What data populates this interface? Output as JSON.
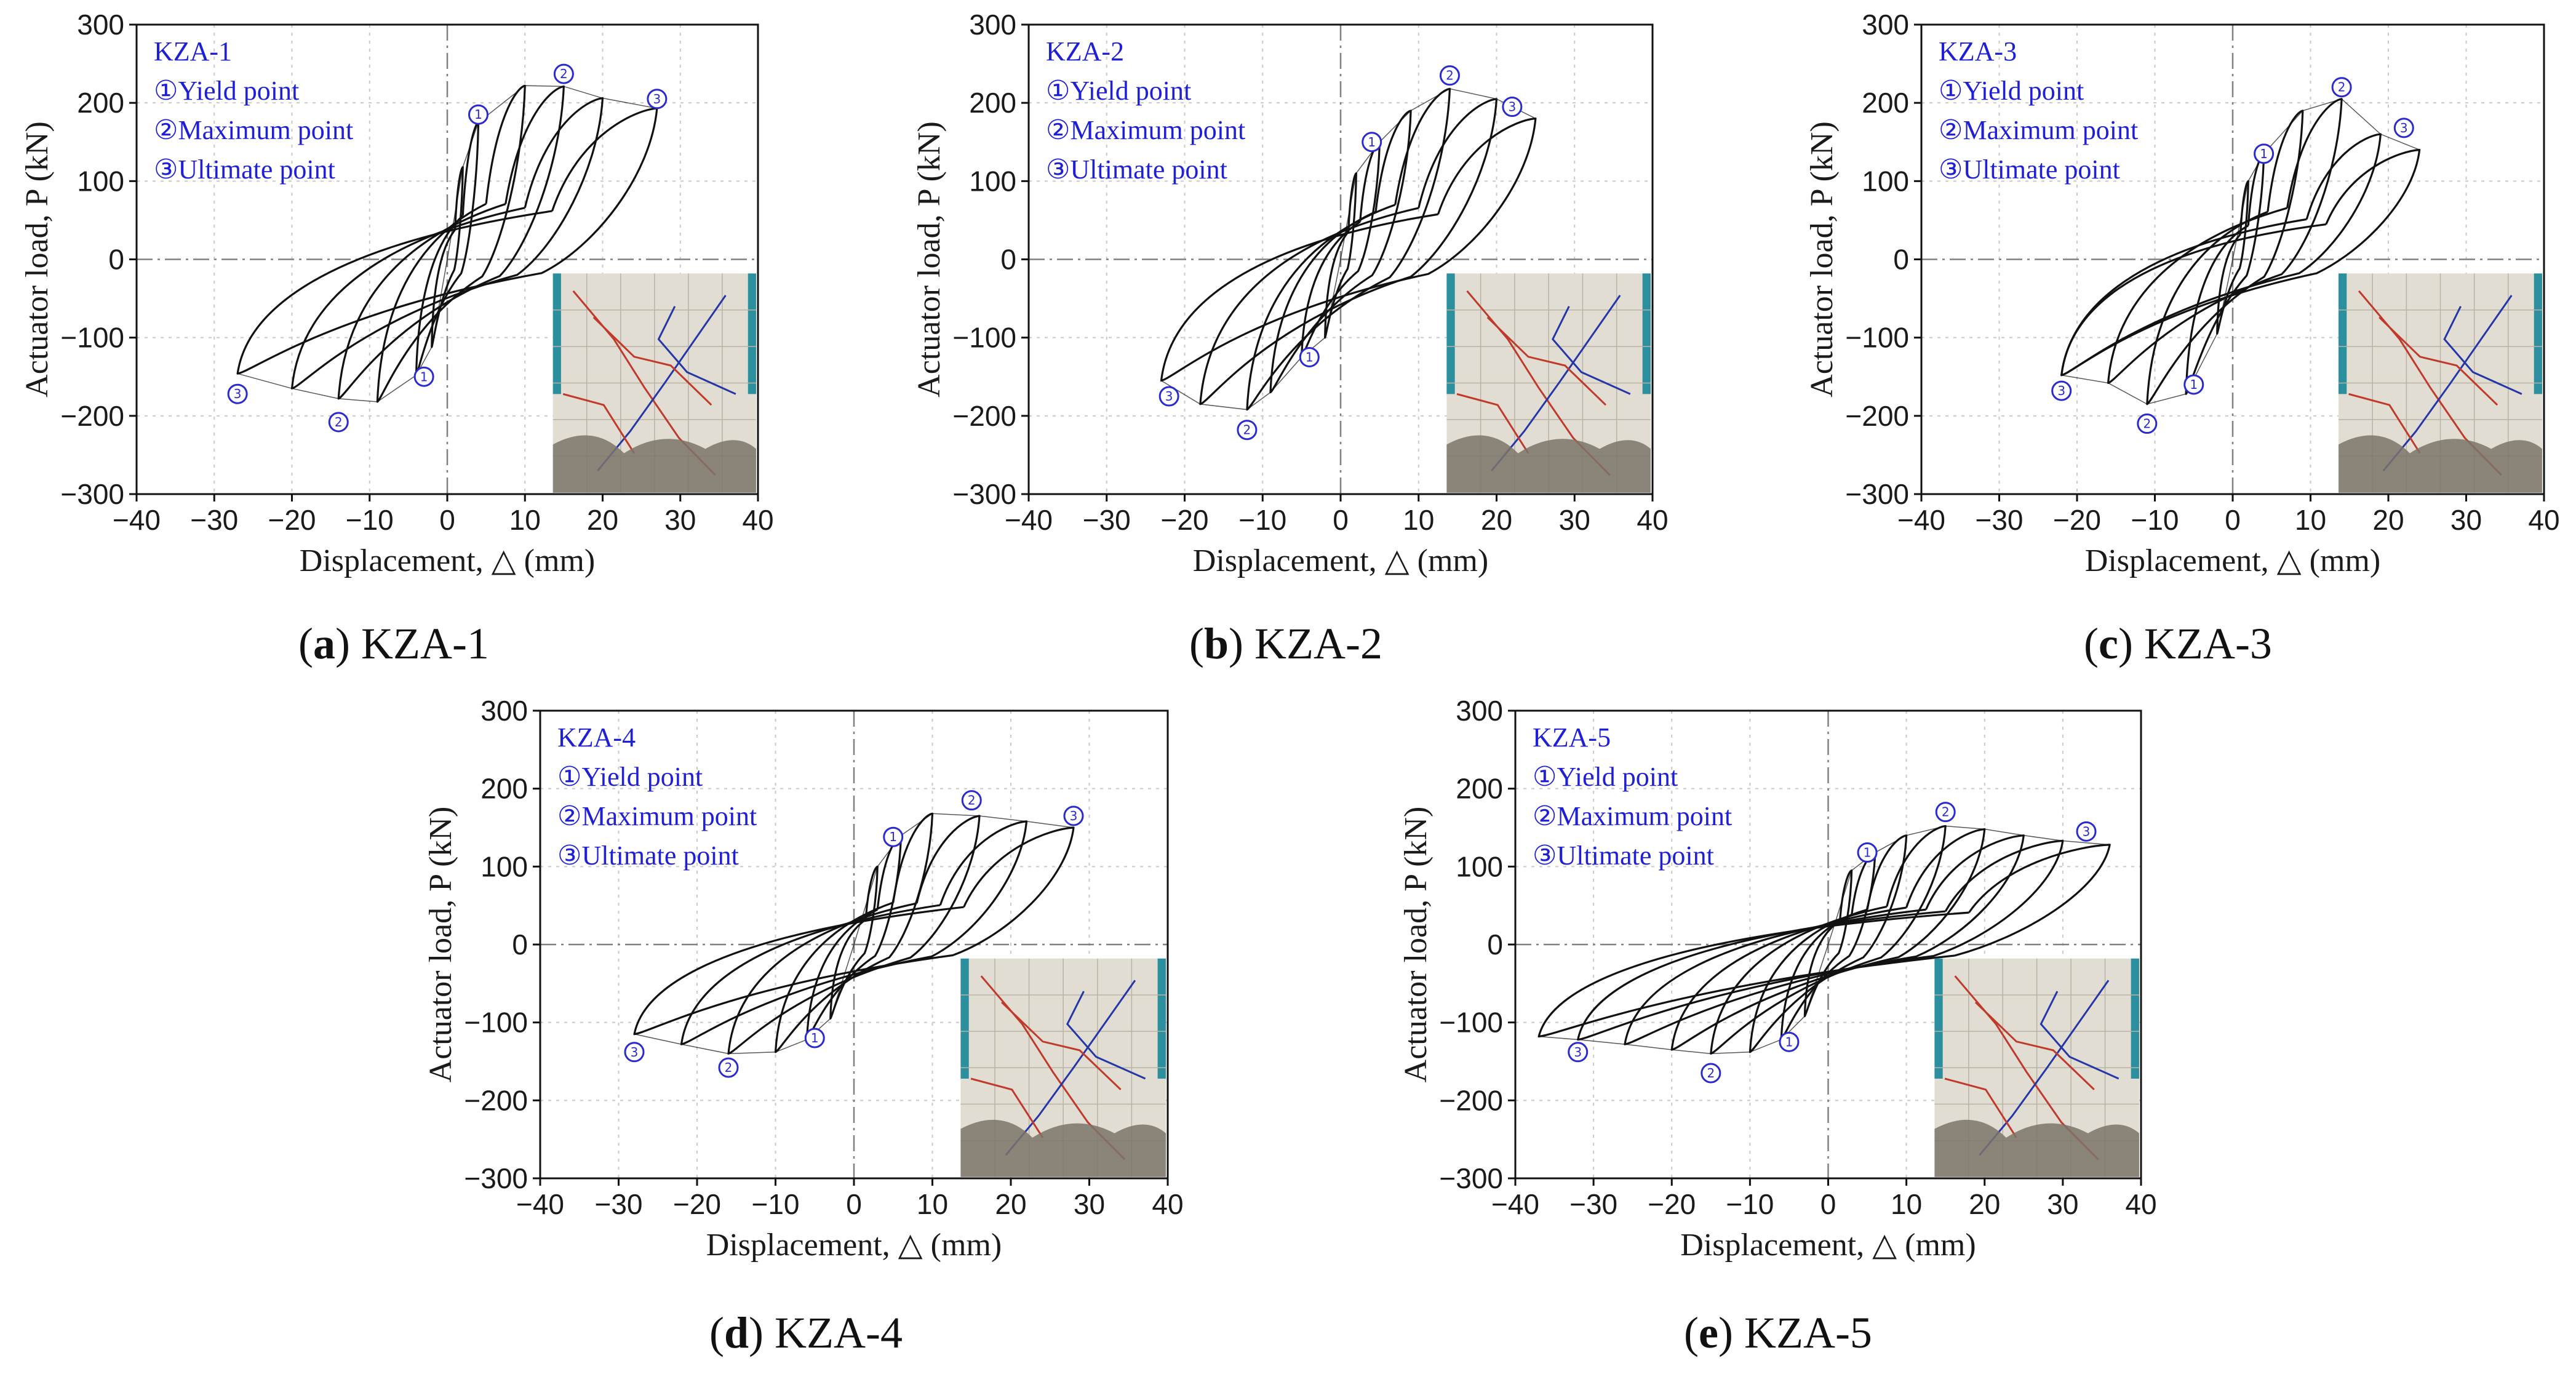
{
  "colors": {
    "legend": "#1f1fd6",
    "marker": "#2a2ad0",
    "curve": "#111111"
  },
  "chart_data": [
    {
      "type": "line",
      "id": "a",
      "caption_label": "(a)",
      "caption_text": "KZA-1",
      "title": "KZA-1",
      "legend": [
        "①Yield point",
        "②Maximum point",
        "③Ultimate point"
      ],
      "xlabel": "Displacement, △ (mm)",
      "ylabel": "Actuator load, P (kN)",
      "xlim": [
        -40,
        40
      ],
      "ylim": [
        -300,
        300
      ],
      "xticks": [
        -40,
        -30,
        -20,
        -10,
        0,
        10,
        20,
        30,
        40
      ],
      "yticks": [
        -300,
        -200,
        -100,
        0,
        100,
        200,
        300
      ],
      "xtick_labels": [
        "−40",
        "−30",
        "−20",
        "−10",
        "0",
        "10",
        "20",
        "30",
        "40"
      ],
      "ytick_labels": [
        "−300",
        "−200",
        "−100",
        "0",
        "100",
        "200",
        "300"
      ],
      "pos_peaks": [
        [
          2,
          118
        ],
        [
          4,
          175
        ],
        [
          10,
          222
        ],
        [
          15,
          221
        ],
        [
          20,
          206
        ],
        [
          27,
          193
        ]
      ],
      "neg_peaks": [
        [
          -2,
          -112
        ],
        [
          -4,
          -148
        ],
        [
          -9,
          -182
        ],
        [
          -14,
          -178
        ],
        [
          -20,
          -165
        ],
        [
          -27,
          -146
        ]
      ],
      "points": [
        {
          "label": "①",
          "x": 4,
          "y": 185
        },
        {
          "label": "②",
          "x": 15,
          "y": 237
        },
        {
          "label": "③",
          "x": 27,
          "y": 205
        },
        {
          "label": "①",
          "x": -3,
          "y": -150
        },
        {
          "label": "②",
          "x": -14,
          "y": -208
        },
        {
          "label": "③",
          "x": -27,
          "y": -172
        }
      ],
      "photo": "Failure mode photograph of specimen KZA-1 (crack pattern)"
    },
    {
      "type": "line",
      "id": "b",
      "caption_label": "(b)",
      "caption_text": "KZA-2",
      "title": "KZA-2",
      "legend": [
        "①Yield point",
        "②Maximum point",
        "③Ultimate point"
      ],
      "xlabel": "Displacement, △ (mm)",
      "ylabel": "Actuator load, P (kN)",
      "xlim": [
        -40,
        40
      ],
      "ylim": [
        -300,
        300
      ],
      "xticks": [
        -40,
        -30,
        -20,
        -10,
        0,
        10,
        20,
        30,
        40
      ],
      "yticks": [
        -300,
        -200,
        -100,
        0,
        100,
        200,
        300
      ],
      "xtick_labels": [
        "−40",
        "−30",
        "−20",
        "−10",
        "0",
        "10",
        "20",
        "30",
        "40"
      ],
      "ytick_labels": [
        "−300",
        "−200",
        "−100",
        "0",
        "100",
        "200",
        "300"
      ],
      "pos_peaks": [
        [
          2,
          110
        ],
        [
          5,
          150
        ],
        [
          9,
          190
        ],
        [
          14,
          218
        ],
        [
          20,
          205
        ],
        [
          25,
          180
        ]
      ],
      "neg_peaks": [
        [
          -2,
          -100
        ],
        [
          -5,
          -125
        ],
        [
          -9,
          -170
        ],
        [
          -12,
          -192
        ],
        [
          -18,
          -185
        ],
        [
          -23,
          -155
        ]
      ],
      "points": [
        {
          "label": "①",
          "x": 4,
          "y": 150
        },
        {
          "label": "②",
          "x": 14,
          "y": 235
        },
        {
          "label": "③",
          "x": 22,
          "y": 195
        },
        {
          "label": "①",
          "x": -4,
          "y": -125
        },
        {
          "label": "②",
          "x": -12,
          "y": -218
        },
        {
          "label": "③",
          "x": -22,
          "y": -175
        }
      ],
      "photo": "Failure mode photograph of specimen KZA-2 (crack pattern)"
    },
    {
      "type": "line",
      "id": "c",
      "caption_label": "(c)",
      "caption_text": "KZA-3",
      "title": "KZA-3",
      "legend": [
        "①Yield point",
        "②Maximum point",
        "③Ultimate point"
      ],
      "xlabel": "Displacement, △ (mm)",
      "ylabel": "Actuator load, P (kN)",
      "xlim": [
        -40,
        40
      ],
      "ylim": [
        -300,
        300
      ],
      "xticks": [
        -40,
        -30,
        -20,
        -10,
        0,
        10,
        20,
        30,
        40
      ],
      "yticks": [
        -300,
        -200,
        -100,
        0,
        100,
        200,
        300
      ],
      "xtick_labels": [
        "−40",
        "−30",
        "−20",
        "−10",
        "0",
        "10",
        "20",
        "30",
        "40"
      ],
      "ytick_labels": [
        "−300",
        "−200",
        "−100",
        "0",
        "100",
        "200",
        "300"
      ],
      "pos_peaks": [
        [
          2,
          100
        ],
        [
          4,
          135
        ],
        [
          9,
          190
        ],
        [
          14,
          205
        ],
        [
          19,
          160
        ],
        [
          24,
          140
        ]
      ],
      "neg_peaks": [
        [
          -2,
          -95
        ],
        [
          -6,
          -172
        ],
        [
          -11,
          -185
        ],
        [
          -16,
          -158
        ],
        [
          -22,
          -148
        ]
      ],
      "points": [
        {
          "label": "①",
          "x": 4,
          "y": 135
        },
        {
          "label": "②",
          "x": 14,
          "y": 220
        },
        {
          "label": "③",
          "x": 22,
          "y": 168
        },
        {
          "label": "①",
          "x": -5,
          "y": -160
        },
        {
          "label": "②",
          "x": -11,
          "y": -210
        },
        {
          "label": "③",
          "x": -22,
          "y": -168
        }
      ],
      "photo": "Failure mode photograph of specimen KZA-3 (crack pattern)"
    },
    {
      "type": "line",
      "id": "d",
      "caption_label": "(d)",
      "caption_text": "KZA-4",
      "title": "KZA-4",
      "legend": [
        "①Yield point",
        "②Maximum point",
        "③Ultimate point"
      ],
      "xlabel": "Displacement, △ (mm)",
      "ylabel": "Actuator load, P (kN)",
      "xlim": [
        -40,
        40
      ],
      "ylim": [
        -300,
        300
      ],
      "xticks": [
        -40,
        -30,
        -20,
        -10,
        0,
        10,
        20,
        30,
        40
      ],
      "yticks": [
        -300,
        -200,
        -100,
        0,
        100,
        200,
        300
      ],
      "xtick_labels": [
        "−40",
        "−30",
        "−20",
        "−10",
        "0",
        "10",
        "20",
        "30",
        "40"
      ],
      "ytick_labels": [
        "−300",
        "−200",
        "−100",
        "0",
        "100",
        "200",
        "300"
      ],
      "pos_peaks": [
        [
          3,
          100
        ],
        [
          6,
          140
        ],
        [
          10,
          168
        ],
        [
          16,
          165
        ],
        [
          22,
          158
        ],
        [
          28,
          150
        ]
      ],
      "neg_peaks": [
        [
          -3,
          -95
        ],
        [
          -6,
          -122
        ],
        [
          -10,
          -138
        ],
        [
          -16,
          -140
        ],
        [
          -22,
          -128
        ],
        [
          -28,
          -115
        ]
      ],
      "points": [
        {
          "label": "①",
          "x": 5,
          "y": 138
        },
        {
          "label": "②",
          "x": 15,
          "y": 185
        },
        {
          "label": "③",
          "x": 28,
          "y": 165
        },
        {
          "label": "①",
          "x": -5,
          "y": -120
        },
        {
          "label": "②",
          "x": -16,
          "y": -158
        },
        {
          "label": "③",
          "x": -28,
          "y": -138
        }
      ],
      "photo": "Failure mode photograph of specimen KZA-4 (crack pattern)"
    },
    {
      "type": "line",
      "id": "e",
      "caption_label": "(e)",
      "caption_text": "KZA-5",
      "title": "KZA-5",
      "legend": [
        "①Yield point",
        "②Maximum point",
        "③Ultimate point"
      ],
      "xlabel": "Displacement, △ (mm)",
      "ylabel": "Actuator load, P (kN)",
      "xlim": [
        -40,
        40
      ],
      "ylim": [
        -300,
        300
      ],
      "xticks": [
        -40,
        -30,
        -20,
        -10,
        0,
        10,
        20,
        30,
        40
      ],
      "yticks": [
        -300,
        -200,
        -100,
        0,
        100,
        200,
        300
      ],
      "xtick_labels": [
        "−40",
        "−30",
        "−20",
        "−10",
        "0",
        "10",
        "20",
        "30",
        "40"
      ],
      "ytick_labels": [
        "−300",
        "−200",
        "−100",
        "0",
        "100",
        "200",
        "300"
      ],
      "pos_peaks": [
        [
          3,
          95
        ],
        [
          6,
          118
        ],
        [
          10,
          140
        ],
        [
          15,
          152
        ],
        [
          20,
          148
        ],
        [
          25,
          140
        ],
        [
          30,
          133
        ],
        [
          36,
          128
        ]
      ],
      "neg_peaks": [
        [
          -3,
          -92
        ],
        [
          -6,
          -122
        ],
        [
          -10,
          -138
        ],
        [
          -15,
          -140
        ],
        [
          -20,
          -135
        ],
        [
          -26,
          -128
        ],
        [
          -32,
          -122
        ],
        [
          -37,
          -118
        ]
      ],
      "points": [
        {
          "label": "①",
          "x": 5,
          "y": 118
        },
        {
          "label": "②",
          "x": 15,
          "y": 170
        },
        {
          "label": "③",
          "x": 33,
          "y": 145
        },
        {
          "label": "①",
          "x": -5,
          "y": -125
        },
        {
          "label": "②",
          "x": -15,
          "y": -165
        },
        {
          "label": "③",
          "x": -32,
          "y": -138
        }
      ],
      "photo": "Failure mode photograph of specimen KZA-5 (crack pattern)"
    }
  ]
}
